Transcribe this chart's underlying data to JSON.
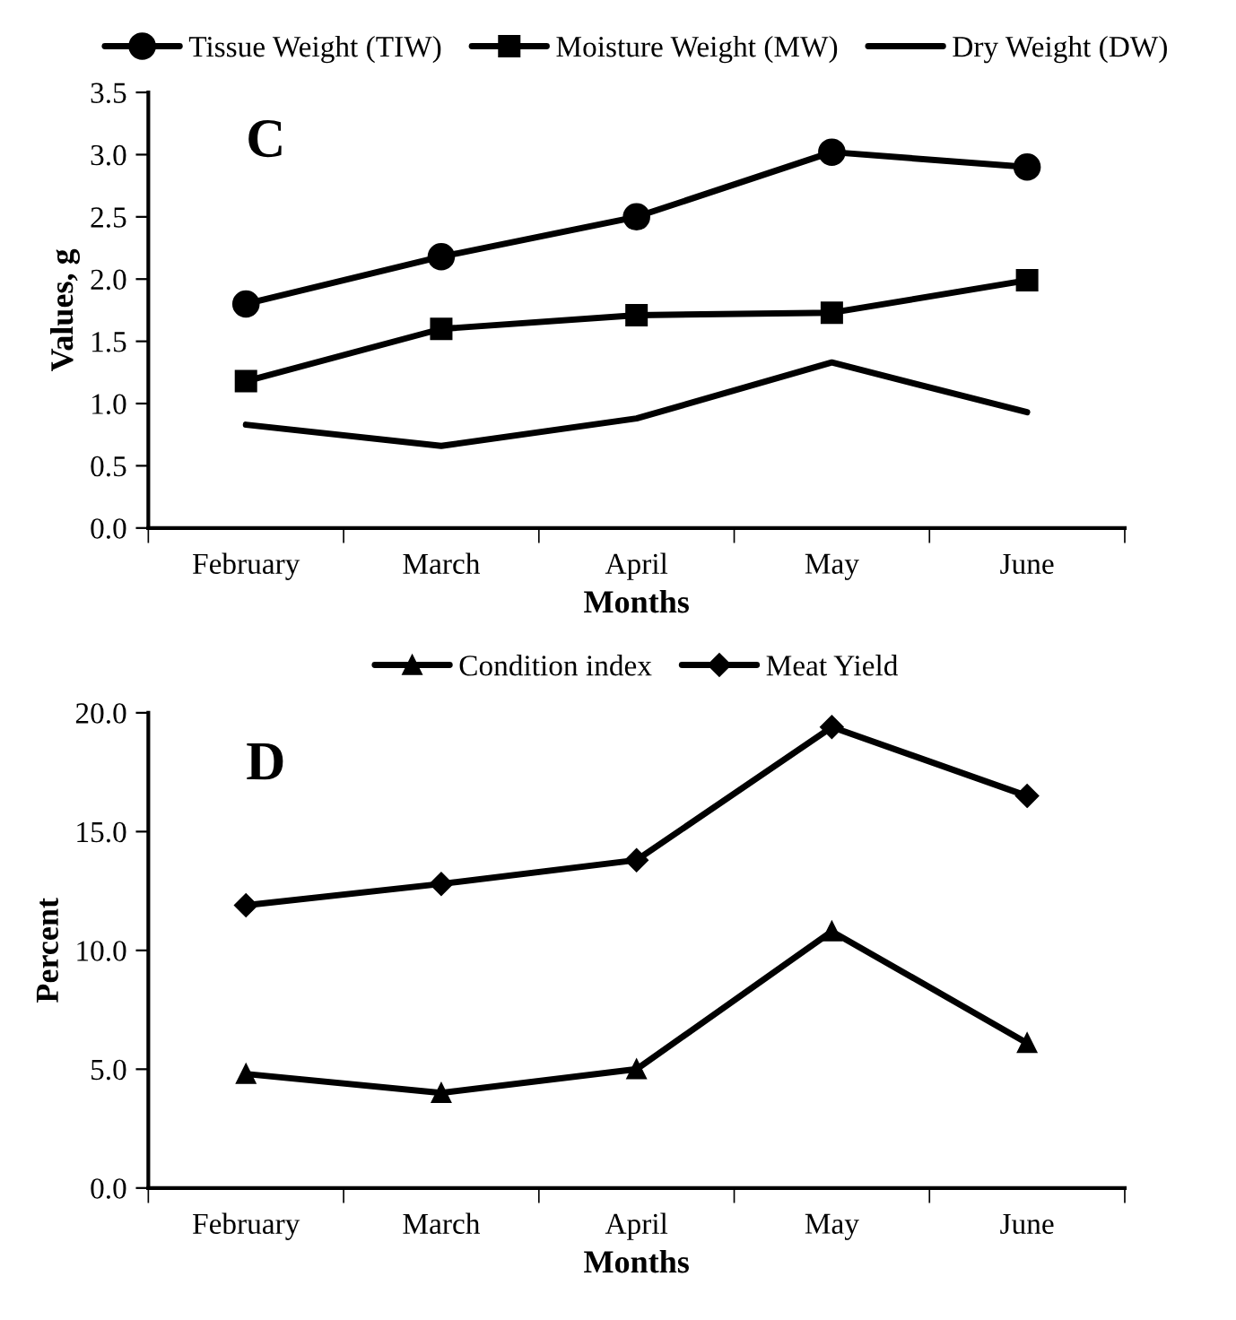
{
  "chart_data": [
    {
      "type": "line",
      "xlabel": "Months",
      "ylabel": "Values, g",
      "annotations": [
        "C"
      ],
      "categories": [
        "February",
        "March",
        "April",
        "May",
        "June"
      ],
      "legend": "top",
      "grid": false,
      "line_style": "solid",
      "ylim": [
        0,
        3.5
      ],
      "yticks": [
        {
          "value": 0,
          "label": "0.0"
        },
        {
          "value": 0.5,
          "label": "0.5"
        },
        {
          "value": 1,
          "label": "1.0"
        },
        {
          "value": 1.5,
          "label": "1.5"
        },
        {
          "value": 2,
          "label": "2.0"
        },
        {
          "value": 2.5,
          "label": "2.5"
        },
        {
          "value": 3,
          "label": "3.0"
        },
        {
          "value": 3.5,
          "label": "3.5"
        }
      ],
      "series": [
        {
          "name": "Tissue Weight (TIW)",
          "color": "#000000",
          "marker": "circle",
          "values": [
            1.8,
            2.18,
            2.5,
            3.02,
            2.9
          ]
        },
        {
          "name": "Moisture Weight (MW)",
          "color": "#000000",
          "marker": "square",
          "values": [
            1.18,
            1.6,
            1.71,
            1.73,
            1.99
          ]
        },
        {
          "name": "Dry Weight (DW)",
          "color": "#000000",
          "marker": "none",
          "values": [
            0.83,
            0.66,
            0.88,
            1.33,
            0.93
          ]
        }
      ]
    },
    {
      "type": "line",
      "xlabel": "Months",
      "ylabel": "Percent",
      "annotations": [
        "D"
      ],
      "categories": [
        "February",
        "March",
        "April",
        "May",
        "June"
      ],
      "legend": "top",
      "grid": false,
      "line_style": "solid",
      "ylim": [
        0,
        20
      ],
      "yticks": [
        {
          "value": 0,
          "label": "0.0"
        },
        {
          "value": 5,
          "label": "5.0"
        },
        {
          "value": 10,
          "label": "10.0"
        },
        {
          "value": 15,
          "label": "15.0"
        },
        {
          "value": 20,
          "label": "20.0"
        }
      ],
      "series": [
        {
          "name": "Condition index",
          "color": "#000000",
          "marker": "triangle",
          "values": [
            4.8,
            4.0,
            5.0,
            10.8,
            6.1
          ]
        },
        {
          "name": "Meat Yield",
          "color": "#000000",
          "marker": "diamond",
          "values": [
            11.9,
            12.8,
            13.8,
            19.4,
            16.5
          ]
        }
      ]
    }
  ]
}
